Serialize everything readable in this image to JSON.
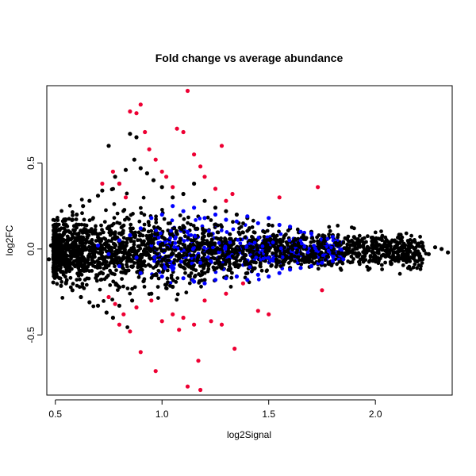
{
  "chart_data": {
    "type": "scatter",
    "title": "Fold change vs average abundance",
    "xlabel": "log2Signal",
    "ylabel": "log2FC",
    "xlim": [
      0.46,
      2.36
    ],
    "ylim": [
      -0.85,
      0.95
    ],
    "x_ticks": [
      0.5,
      1.0,
      1.5,
      2.0
    ],
    "x_tick_labels": [
      "0.5",
      "1.0",
      "1.5",
      "2.0"
    ],
    "y_ticks": [
      -0.5,
      0.0,
      0.5
    ],
    "y_tick_labels": [
      "-0.5",
      "0.0",
      "0.5"
    ],
    "grid": false,
    "legend": "none",
    "series": [
      {
        "color": "#000000",
        "points": [
          [
            0.47,
            -0.06
          ],
          [
            0.48,
            0.02
          ],
          [
            0.5,
            0.06
          ],
          [
            0.52,
            0.11
          ],
          [
            0.55,
            0.14
          ],
          [
            0.58,
            0.17
          ],
          [
            0.6,
            0.2
          ],
          [
            0.63,
            0.25
          ],
          [
            0.66,
            0.28
          ],
          [
            0.7,
            0.31
          ],
          [
            0.72,
            0.34
          ],
          [
            0.75,
            0.6
          ],
          [
            0.78,
            0.42
          ],
          [
            0.8,
            0.38
          ],
          [
            0.83,
            0.46
          ],
          [
            0.85,
            0.67
          ],
          [
            0.87,
            0.52
          ],
          [
            0.88,
            0.65
          ],
          [
            0.9,
            0.47
          ],
          [
            0.93,
            0.44
          ],
          [
            0.96,
            0.4
          ],
          [
            1.0,
            0.36
          ],
          [
            1.05,
            0.3
          ],
          [
            1.1,
            0.32
          ],
          [
            1.15,
            0.38
          ],
          [
            1.2,
            0.28
          ],
          [
            1.25,
            0.24
          ],
          [
            1.3,
            0.22
          ],
          [
            1.35,
            0.2
          ],
          [
            1.4,
            0.18
          ],
          [
            1.5,
            0.14
          ],
          [
            1.6,
            0.12
          ],
          [
            1.7,
            0.1
          ],
          [
            1.8,
            0.08
          ],
          [
            1.9,
            0.07
          ],
          [
            2.0,
            0.05
          ],
          [
            2.1,
            0.04
          ],
          [
            2.2,
            0.02
          ],
          [
            2.28,
            0.01
          ],
          [
            2.31,
            0.0
          ],
          [
            2.34,
            -0.02
          ],
          [
            0.5,
            -0.12
          ],
          [
            0.52,
            -0.17
          ],
          [
            0.55,
            -0.2
          ],
          [
            0.58,
            -0.24
          ],
          [
            0.62,
            -0.28
          ],
          [
            0.66,
            -0.31
          ],
          [
            0.7,
            -0.33
          ],
          [
            0.74,
            -0.37
          ],
          [
            0.77,
            -0.4
          ],
          [
            0.8,
            -0.33
          ],
          [
            0.86,
            -0.3
          ],
          [
            0.95,
            -0.26
          ],
          [
            1.05,
            -0.22
          ],
          [
            1.2,
            -0.18
          ],
          [
            1.4,
            -0.14
          ],
          [
            1.6,
            -0.11
          ],
          [
            1.8,
            -0.08
          ],
          [
            2.0,
            -0.06
          ],
          [
            2.15,
            -0.04
          ],
          [
            2.25,
            -0.03
          ]
        ]
      },
      {
        "color": "#0000ff",
        "points": [
          [
            0.8,
            0.05
          ],
          [
            0.9,
            0.12
          ],
          [
            0.95,
            0.18
          ],
          [
            1.0,
            0.2
          ],
          [
            1.05,
            0.25
          ],
          [
            1.1,
            0.22
          ],
          [
            1.15,
            0.24
          ],
          [
            1.2,
            0.18
          ],
          [
            1.25,
            0.2
          ],
          [
            1.3,
            0.17
          ],
          [
            1.35,
            0.16
          ],
          [
            1.4,
            0.19
          ],
          [
            1.45,
            0.15
          ],
          [
            1.5,
            0.18
          ],
          [
            1.55,
            0.14
          ],
          [
            1.6,
            0.13
          ],
          [
            1.65,
            0.1
          ],
          [
            1.7,
            0.09
          ],
          [
            1.8,
            0.07
          ],
          [
            0.8,
            -0.1
          ],
          [
            0.9,
            -0.14
          ],
          [
            1.0,
            -0.16
          ],
          [
            1.05,
            -0.12
          ],
          [
            1.1,
            -0.17
          ],
          [
            1.15,
            -0.19
          ],
          [
            1.2,
            -0.2
          ],
          [
            1.25,
            -0.18
          ],
          [
            1.3,
            -0.17
          ],
          [
            1.35,
            -0.16
          ],
          [
            1.4,
            -0.18
          ],
          [
            1.45,
            -0.15
          ],
          [
            1.5,
            -0.16
          ],
          [
            1.55,
            -0.14
          ],
          [
            1.6,
            -0.12
          ],
          [
            1.65,
            -0.11
          ],
          [
            1.7,
            -0.1
          ],
          [
            1.75,
            -0.08
          ],
          [
            1.8,
            -0.07
          ],
          [
            1.85,
            -0.06
          ],
          [
            0.7,
            0.02
          ],
          [
            0.75,
            -0.03
          ],
          [
            0.85,
            0.08
          ],
          [
            0.88,
            -0.05
          ],
          [
            1.12,
            0.1
          ],
          [
            1.18,
            -0.08
          ]
        ]
      },
      {
        "color": "#ee0033",
        "points": [
          [
            0.72,
            0.38
          ],
          [
            0.77,
            0.45
          ],
          [
            0.8,
            0.38
          ],
          [
            0.83,
            0.3
          ],
          [
            0.85,
            0.8
          ],
          [
            0.88,
            0.79
          ],
          [
            0.9,
            0.84
          ],
          [
            0.92,
            0.68
          ],
          [
            0.94,
            0.58
          ],
          [
            0.97,
            0.52
          ],
          [
            1.0,
            0.45
          ],
          [
            1.02,
            0.42
          ],
          [
            1.05,
            0.36
          ],
          [
            1.07,
            0.7
          ],
          [
            1.1,
            0.68
          ],
          [
            1.12,
            0.92
          ],
          [
            1.15,
            0.55
          ],
          [
            1.18,
            0.48
          ],
          [
            1.2,
            0.42
          ],
          [
            1.25,
            0.35
          ],
          [
            1.28,
            0.6
          ],
          [
            1.3,
            0.28
          ],
          [
            1.33,
            0.32
          ],
          [
            1.55,
            0.3
          ],
          [
            1.73,
            0.36
          ],
          [
            0.75,
            -0.28
          ],
          [
            0.78,
            -0.32
          ],
          [
            0.8,
            -0.44
          ],
          [
            0.82,
            -0.38
          ],
          [
            0.85,
            -0.48
          ],
          [
            0.88,
            -0.34
          ],
          [
            0.9,
            -0.6
          ],
          [
            0.95,
            -0.3
          ],
          [
            0.97,
            -0.71
          ],
          [
            1.0,
            -0.42
          ],
          [
            1.05,
            -0.38
          ],
          [
            1.08,
            -0.47
          ],
          [
            1.1,
            -0.4
          ],
          [
            1.12,
            -0.8
          ],
          [
            1.15,
            -0.44
          ],
          [
            1.17,
            -0.65
          ],
          [
            1.18,
            -0.82
          ],
          [
            1.2,
            -0.3
          ],
          [
            1.23,
            -0.42
          ],
          [
            1.28,
            -0.44
          ],
          [
            1.3,
            -0.26
          ],
          [
            1.34,
            -0.58
          ],
          [
            1.38,
            -0.2
          ],
          [
            1.45,
            -0.36
          ],
          [
            1.5,
            -0.38
          ],
          [
            1.75,
            -0.24
          ]
        ]
      }
    ]
  }
}
